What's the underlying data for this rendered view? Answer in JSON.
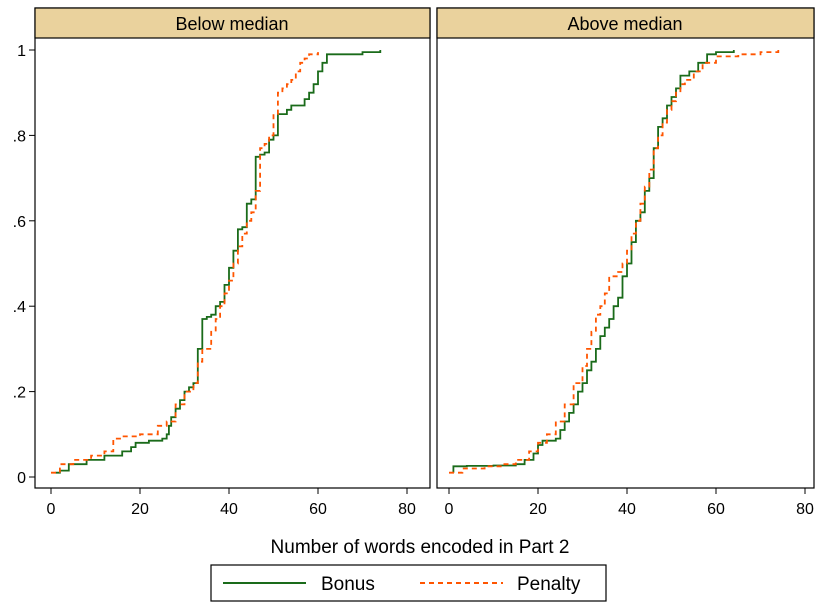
{
  "chart_data": {
    "type": "line",
    "xlabel": "Number of words encoded in Part 2",
    "xlim": [
      0,
      80
    ],
    "ylim": [
      0,
      1
    ],
    "x_ticks": [
      {
        "value": 0,
        "label": "0"
      },
      {
        "value": 20,
        "label": "20"
      },
      {
        "value": 40,
        "label": "40"
      },
      {
        "value": 60,
        "label": "60"
      },
      {
        "value": 80,
        "label": "80"
      }
    ],
    "y_ticks": [
      {
        "value": 0,
        "label": "0"
      },
      {
        "value": 0.2,
        "label": ".2"
      },
      {
        "value": 0.4,
        "label": ".4"
      },
      {
        "value": 0.6,
        "label": ".6"
      },
      {
        "value": 0.8,
        "label": ".8"
      },
      {
        "value": 1,
        "label": "1"
      }
    ],
    "grid": false,
    "legend": {
      "position": "bottom",
      "entries": [
        {
          "name": "Bonus",
          "color": "#1a6b1a",
          "dash": "solid"
        },
        {
          "name": "Penalty",
          "color": "#ff5500",
          "dash": "dashed"
        }
      ]
    },
    "panels": [
      {
        "title": "Below median",
        "series": [
          {
            "name": "Bonus",
            "color": "#1a6b1a",
            "points": [
              [
                1,
                0.01
              ],
              [
                2,
                0.015
              ],
              [
                4,
                0.03
              ],
              [
                8,
                0.04
              ],
              [
                12,
                0.05
              ],
              [
                16,
                0.06
              ],
              [
                18,
                0.07
              ],
              [
                19,
                0.08
              ],
              [
                22,
                0.085
              ],
              [
                25,
                0.09
              ],
              [
                26,
                0.1
              ],
              [
                26.5,
                0.12
              ],
              [
                27,
                0.14
              ],
              [
                28,
                0.16
              ],
              [
                29,
                0.18
              ],
              [
                30,
                0.2
              ],
              [
                31,
                0.21
              ],
              [
                32,
                0.22
              ],
              [
                33,
                0.3
              ],
              [
                34,
                0.37
              ],
              [
                35,
                0.375
              ],
              [
                36,
                0.38
              ],
              [
                37,
                0.4
              ],
              [
                38,
                0.41
              ],
              [
                39,
                0.45
              ],
              [
                40,
                0.49
              ],
              [
                41,
                0.53
              ],
              [
                42,
                0.58
              ],
              [
                43,
                0.585
              ],
              [
                44,
                0.64
              ],
              [
                45,
                0.65
              ],
              [
                46,
                0.75
              ],
              [
                47,
                0.755
              ],
              [
                48,
                0.76
              ],
              [
                49,
                0.79
              ],
              [
                50,
                0.8
              ],
              [
                51,
                0.85
              ],
              [
                53,
                0.86
              ],
              [
                54,
                0.87
              ],
              [
                57,
                0.885
              ],
              [
                58,
                0.9
              ],
              [
                59,
                0.92
              ],
              [
                60,
                0.95
              ],
              [
                61,
                0.97
              ],
              [
                62,
                0.99
              ],
              [
                70,
                0.995
              ],
              [
                74,
                1
              ]
            ]
          },
          {
            "name": "Penalty",
            "color": "#ff5500",
            "points": [
              [
                0,
                0.01
              ],
              [
                2,
                0.03
              ],
              [
                5,
                0.04
              ],
              [
                9,
                0.05
              ],
              [
                12,
                0.06
              ],
              [
                14,
                0.09
              ],
              [
                16,
                0.095
              ],
              [
                20,
                0.1
              ],
              [
                24,
                0.12
              ],
              [
                26,
                0.13
              ],
              [
                28,
                0.17
              ],
              [
                30,
                0.2
              ],
              [
                32,
                0.22
              ],
              [
                33,
                0.27
              ],
              [
                34,
                0.3
              ],
              [
                36,
                0.34
              ],
              [
                37,
                0.37
              ],
              [
                38,
                0.4
              ],
              [
                39,
                0.43
              ],
              [
                40,
                0.46
              ],
              [
                41,
                0.5
              ],
              [
                42,
                0.54
              ],
              [
                43,
                0.57
              ],
              [
                44,
                0.6
              ],
              [
                45,
                0.62
              ],
              [
                46,
                0.67
              ],
              [
                47,
                0.77
              ],
              [
                48,
                0.78
              ],
              [
                49,
                0.8
              ],
              [
                50,
                0.85
              ],
              [
                51,
                0.9
              ],
              [
                52,
                0.91
              ],
              [
                53,
                0.92
              ],
              [
                54,
                0.93
              ],
              [
                55,
                0.95
              ],
              [
                56,
                0.97
              ],
              [
                57,
                0.98
              ],
              [
                58,
                0.99
              ],
              [
                60,
                0.995
              ]
            ]
          }
        ]
      },
      {
        "title": "Above median",
        "series": [
          {
            "name": "Bonus",
            "color": "#1a6b1a",
            "points": [
              [
                1,
                0.01
              ],
              [
                1,
                0.025
              ],
              [
                4,
                0.026
              ],
              [
                10,
                0.027
              ],
              [
                15,
                0.03
              ],
              [
                17,
                0.04
              ],
              [
                19,
                0.055
              ],
              [
                20,
                0.075
              ],
              [
                21,
                0.085
              ],
              [
                24,
                0.09
              ],
              [
                25,
                0.11
              ],
              [
                26,
                0.13
              ],
              [
                27,
                0.15
              ],
              [
                28,
                0.17
              ],
              [
                29,
                0.2
              ],
              [
                30,
                0.22
              ],
              [
                31,
                0.25
              ],
              [
                32,
                0.27
              ],
              [
                33,
                0.3
              ],
              [
                34,
                0.33
              ],
              [
                35,
                0.35
              ],
              [
                36,
                0.37
              ],
              [
                37,
                0.4
              ],
              [
                38,
                0.42
              ],
              [
                39,
                0.47
              ],
              [
                40,
                0.5
              ],
              [
                41,
                0.55
              ],
              [
                42,
                0.6
              ],
              [
                43,
                0.62
              ],
              [
                44,
                0.67
              ],
              [
                45,
                0.7
              ],
              [
                46,
                0.77
              ],
              [
                47,
                0.82
              ],
              [
                48,
                0.84
              ],
              [
                49,
                0.87
              ],
              [
                50,
                0.89
              ],
              [
                51,
                0.91
              ],
              [
                52,
                0.94
              ],
              [
                54,
                0.95
              ],
              [
                56,
                0.97
              ],
              [
                58,
                0.99
              ],
              [
                60,
                0.995
              ],
              [
                64,
                1
              ]
            ]
          },
          {
            "name": "Penalty",
            "color": "#ff5500",
            "points": [
              [
                0,
                0.01
              ],
              [
                3,
                0.02
              ],
              [
                8,
                0.025
              ],
              [
                12,
                0.03
              ],
              [
                15,
                0.04
              ],
              [
                18,
                0.06
              ],
              [
                20,
                0.08
              ],
              [
                22,
                0.1
              ],
              [
                24,
                0.13
              ],
              [
                26,
                0.17
              ],
              [
                28,
                0.22
              ],
              [
                30,
                0.26
              ],
              [
                31,
                0.3
              ],
              [
                32,
                0.34
              ],
              [
                33,
                0.38
              ],
              [
                34,
                0.4
              ],
              [
                35,
                0.43
              ],
              [
                36,
                0.47
              ],
              [
                38,
                0.48
              ],
              [
                39,
                0.5
              ],
              [
                40,
                0.53
              ],
              [
                41,
                0.57
              ],
              [
                42,
                0.6
              ],
              [
                43,
                0.64
              ],
              [
                44,
                0.68
              ],
              [
                45,
                0.72
              ],
              [
                46,
                0.77
              ],
              [
                47,
                0.8
              ],
              [
                48,
                0.83
              ],
              [
                49,
                0.86
              ],
              [
                50,
                0.88
              ],
              [
                51,
                0.9
              ],
              [
                52,
                0.92
              ],
              [
                53,
                0.93
              ],
              [
                55,
                0.95
              ],
              [
                57,
                0.97
              ],
              [
                60,
                0.985
              ],
              [
                65,
                0.99
              ],
              [
                70,
                0.995
              ],
              [
                74,
                1
              ]
            ]
          }
        ]
      }
    ]
  }
}
